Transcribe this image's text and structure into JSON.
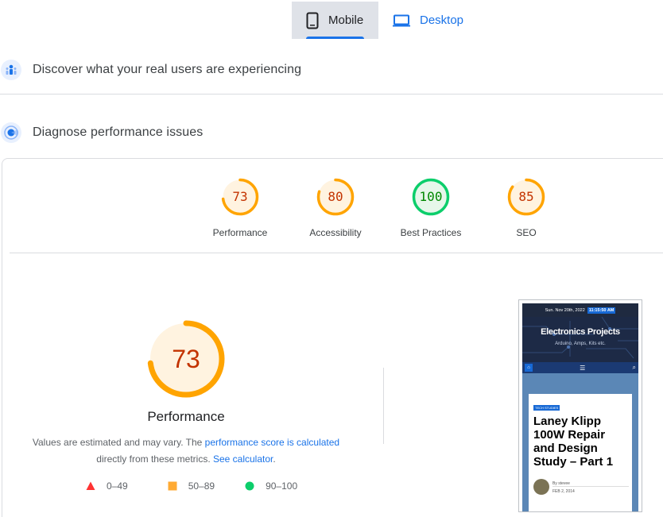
{
  "tabs": [
    {
      "label": "Mobile",
      "icon": "phone-icon",
      "active": true
    },
    {
      "label": "Desktop",
      "icon": "laptop-icon",
      "active": false
    }
  ],
  "sections": {
    "field": {
      "title": "Discover what your real users are experiencing",
      "icon": "users-icon"
    },
    "lab": {
      "title": "Diagnose performance issues",
      "icon": "lighthouse-icon"
    }
  },
  "categories": [
    {
      "label": "Performance",
      "score": "73",
      "level": 0.73,
      "status": "average"
    },
    {
      "label": "Accessibility",
      "score": "80",
      "level": 0.8,
      "status": "average"
    },
    {
      "label": "Best Practices",
      "score": "100",
      "level": 1.0,
      "status": "pass"
    },
    {
      "label": "SEO",
      "score": "85",
      "level": 0.85,
      "status": "average"
    }
  ],
  "performance": {
    "score": "73",
    "level": 0.73,
    "title": "Performance",
    "desc_1": "Values are estimated and may vary. The ",
    "link_score": "performance score is calculated",
    "desc_2": "directly from these metrics. ",
    "link_calc": "See calculator",
    "desc_3": "."
  },
  "legend": [
    {
      "range": "0–49",
      "shape": "triangle",
      "color": "#ff3333"
    },
    {
      "range": "50–89",
      "shape": "square",
      "color": "#ffaa33"
    },
    {
      "range": "90–100",
      "shape": "circle",
      "color": "#0cce6b"
    }
  ],
  "colors": {
    "accent": "#1a73e8",
    "average": "#ffa400",
    "average_text": "#c33300",
    "average_bg": "#fff3e0",
    "pass": "#0cce6b",
    "pass_text": "#008800",
    "pass_bg": "#e6f7ea"
  },
  "screenshot": {
    "date": "Sun. Nov 20th, 2022",
    "time": "11:15:50 AM",
    "site_title": "Electronics Projects",
    "site_tagline": "Arduino, Amps, Kits etc.",
    "tag": "TECH STUDIES",
    "headline": "Laney Klipp 100W Repair and Design Study – Part 1",
    "byline": "By stevee",
    "post_date": "FEB 2, 2014"
  }
}
